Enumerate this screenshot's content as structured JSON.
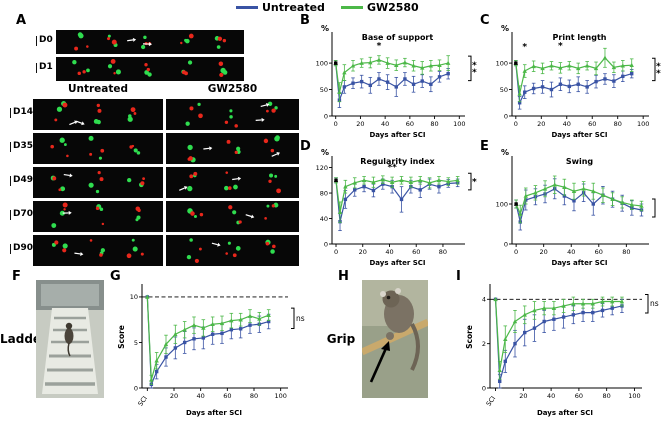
{
  "figure": {
    "legend": [
      {
        "label": "Untreated",
        "color": "#3953a4"
      },
      {
        "label": "GW2580",
        "color": "#4cb848"
      }
    ],
    "panels": {
      "A": {
        "letter": "A",
        "top_rows": [
          {
            "label": "D0",
            "arrows": 2
          },
          {
            "label": "D1",
            "arrows": 0
          }
        ],
        "col_headers": [
          "Untreated",
          "GW2580"
        ],
        "rows": [
          {
            "label": "D14",
            "arrows": [
              2,
              2
            ]
          },
          {
            "label": "D35",
            "arrows": [
              0,
              2
            ]
          },
          {
            "label": "D49",
            "arrows": [
              1,
              2
            ]
          },
          {
            "label": "D70",
            "arrows": [
              1,
              1
            ]
          },
          {
            "label": "D90",
            "arrows": [
              1,
              1
            ]
          }
        ]
      },
      "F": {
        "letter": "F",
        "caption": "Ladder"
      },
      "H": {
        "letter": "H",
        "caption": "Grip"
      }
    }
  },
  "chart_data": [
    {
      "id": "B",
      "panel_letter": "B",
      "type": "line",
      "title": "Base of support",
      "ylabel": "%",
      "xlabel": "Days after SCI",
      "xlim": [
        -3,
        103
      ],
      "ylim": [
        0,
        155
      ],
      "yticks": [
        0,
        50,
        100
      ],
      "xticks": [
        0,
        20,
        40,
        60,
        80,
        100
      ],
      "x": [
        0,
        3,
        7,
        14,
        21,
        28,
        35,
        42,
        49,
        56,
        63,
        70,
        77,
        84,
        91
      ],
      "series": [
        {
          "name": "Untreated",
          "color": "#3953a4",
          "marker": "square",
          "values": [
            100,
            30,
            55,
            62,
            65,
            58,
            70,
            64,
            55,
            70,
            60,
            66,
            60,
            74,
            80
          ],
          "err": [
            5,
            14,
            12,
            10,
            12,
            15,
            12,
            14,
            18,
            12,
            15,
            12,
            14,
            10,
            10
          ]
        },
        {
          "name": "GW2580",
          "color": "#4cb848",
          "marker": "triangle",
          "values": [
            100,
            45,
            82,
            95,
            100,
            101,
            106,
            100,
            96,
            101,
            95,
            91,
            95,
            96,
            100
          ],
          "err": [
            5,
            18,
            15,
            10,
            8,
            10,
            8,
            10,
            10,
            8,
            10,
            12,
            10,
            10,
            14
          ]
        }
      ],
      "sig_points": [
        {
          "text": "*",
          "x": 35,
          "y": 128
        }
      ],
      "bracket": "**"
    },
    {
      "id": "C",
      "panel_letter": "C",
      "type": "line",
      "title": "Print length",
      "ylabel": "%",
      "xlabel": "Days after SCI",
      "xlim": [
        -3,
        103
      ],
      "ylim": [
        0,
        155
      ],
      "yticks": [
        0,
        50,
        100
      ],
      "xticks": [
        0,
        20,
        40,
        60,
        80,
        100
      ],
      "x": [
        0,
        3,
        7,
        14,
        21,
        28,
        35,
        42,
        49,
        56,
        63,
        70,
        77,
        84,
        91
      ],
      "series": [
        {
          "name": "Untreated",
          "color": "#3953a4",
          "marker": "square",
          "values": [
            100,
            25,
            45,
            52,
            55,
            50,
            60,
            56,
            60,
            55,
            65,
            70,
            66,
            75,
            80
          ],
          "err": [
            5,
            12,
            12,
            10,
            12,
            14,
            12,
            12,
            14,
            12,
            12,
            10,
            12,
            10,
            8
          ]
        },
        {
          "name": "GW2580",
          "color": "#4cb848",
          "marker": "triangle",
          "values": [
            100,
            42,
            85,
            94,
            90,
            95,
            91,
            95,
            90,
            95,
            90,
            110,
            92,
            95,
            96
          ],
          "err": [
            5,
            15,
            12,
            10,
            10,
            8,
            10,
            8,
            10,
            8,
            12,
            18,
            10,
            10,
            12
          ]
        }
      ],
      "sig_points": [
        {
          "text": "*",
          "x": 7,
          "y": 126
        },
        {
          "text": "*",
          "x": 35,
          "y": 128
        }
      ],
      "bracket": "**"
    },
    {
      "id": "D",
      "panel_letter": "D",
      "type": "line",
      "title": "Regularity index",
      "ylabel": "%",
      "xlabel": "Days after SCI",
      "xlim": [
        -3,
        95
      ],
      "ylim": [
        0,
        135
      ],
      "yticks": [
        0,
        40,
        80,
        120
      ],
      "xticks": [
        0,
        20,
        40,
        60,
        80
      ],
      "x": [
        0,
        3,
        7,
        14,
        21,
        28,
        35,
        42,
        49,
        56,
        63,
        70,
        77,
        84,
        91
      ],
      "series": [
        {
          "name": "Untreated",
          "color": "#3953a4",
          "marker": "square",
          "values": [
            100,
            35,
            70,
            85,
            90,
            84,
            94,
            90,
            70,
            90,
            85,
            94,
            90,
            95,
            96
          ],
          "err": [
            4,
            14,
            14,
            10,
            8,
            10,
            8,
            10,
            20,
            10,
            12,
            8,
            10,
            6,
            6
          ]
        },
        {
          "name": "GW2580",
          "color": "#4cb848",
          "marker": "triangle",
          "values": [
            100,
            50,
            90,
            96,
            100,
            97,
            101,
            97,
            100,
            97,
            100,
            96,
            100,
            98,
            100
          ],
          "err": [
            4,
            16,
            10,
            8,
            6,
            8,
            6,
            8,
            6,
            8,
            6,
            8,
            6,
            6,
            6
          ]
        }
      ],
      "sig_points": [
        {
          "text": "**",
          "x": 42,
          "y": 116
        }
      ],
      "bracket": "*"
    },
    {
      "id": "E",
      "panel_letter": "E",
      "type": "line",
      "title": "Swing",
      "ylabel": "%",
      "xlabel": "Days after SCI",
      "xlim": [
        -3,
        95
      ],
      "ylim": [
        0,
        215
      ],
      "yticks": [
        0,
        100
      ],
      "xticks": [
        0,
        20,
        40,
        60,
        80
      ],
      "x": [
        0,
        3,
        7,
        14,
        21,
        28,
        35,
        42,
        49,
        56,
        63,
        70,
        77,
        84,
        91
      ],
      "series": [
        {
          "name": "Untreated",
          "color": "#3953a4",
          "marker": "square",
          "values": [
            100,
            55,
            110,
            118,
            125,
            138,
            120,
            108,
            128,
            100,
            122,
            112,
            102,
            90,
            85
          ],
          "err": [
            10,
            20,
            25,
            20,
            22,
            25,
            22,
            25,
            22,
            28,
            22,
            20,
            20,
            18,
            15
          ]
        },
        {
          "name": "GW2580",
          "color": "#4cb848",
          "marker": "triangle",
          "values": [
            100,
            75,
            120,
            128,
            138,
            148,
            142,
            132,
            138,
            132,
            122,
            112,
            104,
            98,
            95
          ],
          "err": [
            10,
            22,
            20,
            18,
            20,
            22,
            20,
            20,
            18,
            20,
            18,
            16,
            14,
            12,
            12
          ]
        }
      ],
      "sig_points": [],
      "bracket": ""
    },
    {
      "id": "G",
      "panel_letter": "G",
      "type": "line",
      "title": "",
      "ylabel": "Score",
      "ylabel_rotated": true,
      "xlabel": "Days after SCI",
      "xlim": [
        -4,
        104
      ],
      "ylim": [
        0,
        11.2
      ],
      "yticks": [
        0,
        5,
        10
      ],
      "xticks": [
        0,
        20,
        40,
        60,
        80,
        100
      ],
      "xtick_labels": [
        "SCI",
        "20",
        "40",
        "60",
        "80",
        "100"
      ],
      "dashed_y": 10,
      "x": [
        0,
        3,
        7,
        14,
        21,
        28,
        35,
        42,
        49,
        56,
        63,
        70,
        77,
        84,
        91
      ],
      "series": [
        {
          "name": "Untreated",
          "color": "#3953a4",
          "marker": "square",
          "values": [
            10,
            0.4,
            1.8,
            3.4,
            4.4,
            5,
            5.4,
            5.5,
            5.9,
            6,
            6.4,
            6.5,
            6.9,
            7,
            7.3
          ],
          "err": [
            0,
            0.4,
            0.8,
            1,
            1.2,
            1.2,
            1.2,
            1.2,
            1.1,
            1.1,
            1,
            1,
            0.9,
            0.9,
            0.8
          ]
        },
        {
          "name": "GW2580",
          "color": "#4cb848",
          "marker": "triangle",
          "values": [
            10,
            0.9,
            3,
            4.8,
            5.9,
            6.4,
            6.9,
            6.6,
            7,
            7.1,
            7.4,
            7.5,
            7.9,
            7.6,
            8
          ],
          "err": [
            0,
            0.5,
            0.9,
            1,
            1,
            0.9,
            0.9,
            0.9,
            0.8,
            0.8,
            0.8,
            0.7,
            0.7,
            0.7,
            0.6
          ]
        }
      ],
      "sig_points": [],
      "bracket": "ns"
    },
    {
      "id": "I",
      "panel_letter": "I",
      "type": "line",
      "title": "",
      "ylabel": "Score",
      "ylabel_rotated": true,
      "xlabel": "Days after SCI",
      "xlim": [
        -4,
        104
      ],
      "ylim": [
        0,
        4.6
      ],
      "yticks": [
        0,
        2,
        4
      ],
      "xticks": [
        0,
        20,
        40,
        60,
        80,
        100
      ],
      "xtick_labels": [
        "SCI",
        "20",
        "40",
        "60",
        "80",
        "100"
      ],
      "dashed_y": 4,
      "x": [
        0,
        3,
        7,
        14,
        21,
        28,
        35,
        42,
        49,
        56,
        63,
        70,
        77,
        84,
        91
      ],
      "series": [
        {
          "name": "Untreated",
          "color": "#3953a4",
          "marker": "square",
          "values": [
            4,
            0.3,
            1.2,
            2,
            2.5,
            2.7,
            3,
            3.1,
            3.2,
            3.3,
            3.4,
            3.4,
            3.5,
            3.6,
            3.7
          ],
          "err": [
            0,
            0.3,
            0.5,
            0.6,
            0.6,
            0.6,
            0.5,
            0.5,
            0.5,
            0.4,
            0.4,
            0.4,
            0.3,
            0.3,
            0.3
          ]
        },
        {
          "name": "GW2580",
          "color": "#4cb848",
          "marker": "triangle",
          "values": [
            4,
            0.8,
            2.2,
            3,
            3.3,
            3.5,
            3.6,
            3.6,
            3.7,
            3.8,
            3.8,
            3.8,
            3.9,
            3.9,
            3.9
          ],
          "err": [
            0,
            0.4,
            0.6,
            0.5,
            0.4,
            0.4,
            0.3,
            0.3,
            0.3,
            0.3,
            0.2,
            0.2,
            0.2,
            0.2,
            0.2
          ]
        }
      ],
      "sig_points": [],
      "bracket": "ns"
    }
  ]
}
